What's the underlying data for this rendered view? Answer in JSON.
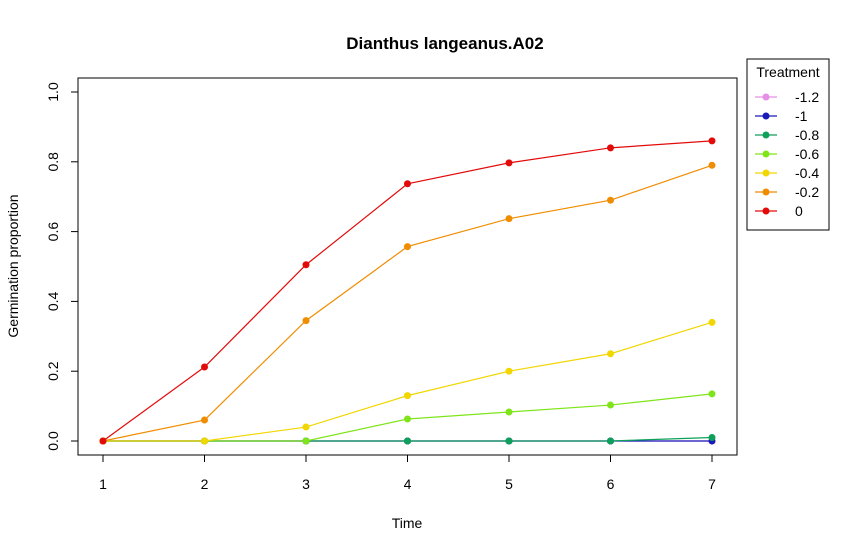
{
  "chart_data": {
    "type": "line",
    "title": "Dianthus langeanus.A02",
    "xlabel": "Time",
    "ylabel": "Germination proportion",
    "x": [
      1,
      2,
      3,
      4,
      5,
      6,
      7
    ],
    "xlim": [
      1,
      7
    ],
    "ylim": [
      0,
      1
    ],
    "xticks": [
      "1",
      "2",
      "3",
      "4",
      "5",
      "6",
      "7"
    ],
    "yticks": [
      "0.0",
      "0.2",
      "0.4",
      "0.6",
      "0.8",
      "1.0"
    ],
    "grid": false,
    "legend": {
      "title": "Treatment",
      "placement": "right"
    },
    "series": [
      {
        "name": "-1.2",
        "color": "#E68FE6",
        "values": [
          0,
          0,
          0,
          0,
          0,
          0,
          0
        ]
      },
      {
        "name": "-1",
        "color": "#1A1AB8",
        "values": [
          0,
          0,
          0,
          0,
          0,
          0,
          0
        ]
      },
      {
        "name": "-0.8",
        "color": "#0DA05A",
        "values": [
          0,
          0,
          0,
          0,
          0,
          0,
          0.01
        ]
      },
      {
        "name": "-0.6",
        "color": "#7FE51A",
        "values": [
          0,
          0,
          0,
          0.063,
          0.083,
          0.103,
          0.135
        ]
      },
      {
        "name": "-0.4",
        "color": "#F2D600",
        "values": [
          0,
          0,
          0.04,
          0.13,
          0.2,
          0.25,
          0.34
        ]
      },
      {
        "name": "-0.2",
        "color": "#F08C00",
        "values": [
          0,
          0.06,
          0.345,
          0.557,
          0.637,
          0.69,
          0.79
        ]
      },
      {
        "name": "0",
        "color": "#E30A0A",
        "values": [
          0,
          0.212,
          0.505,
          0.737,
          0.797,
          0.84,
          0.86
        ]
      }
    ]
  }
}
